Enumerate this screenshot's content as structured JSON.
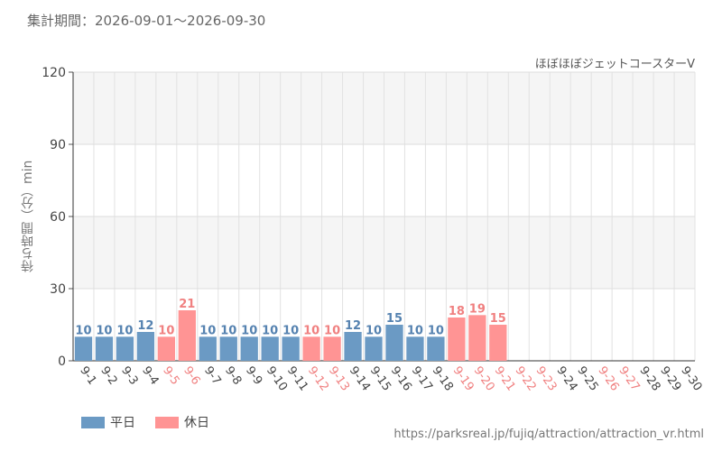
{
  "period": "集計期間：2026-09-01～2026-09-30",
  "source": "https://parksreal.jp/fujiq/attraction/attraction_vr.html",
  "chart_data": {
    "type": "bar",
    "subtitle": "ほぼほぼジェットコースターV",
    "ylabel": "待ち時間（分）min",
    "ylim": [
      0,
      120
    ],
    "yticks": [
      0,
      30,
      60,
      90,
      120
    ],
    "categories": [
      "9-1",
      "9-2",
      "9-3",
      "9-4",
      "9-5",
      "9-6",
      "9-7",
      "9-8",
      "9-9",
      "9-10",
      "9-11",
      "9-12",
      "9-13",
      "9-14",
      "9-15",
      "9-16",
      "9-17",
      "9-18",
      "9-19",
      "9-20",
      "9-21",
      "9-22",
      "9-23",
      "9-24",
      "9-25",
      "9-26",
      "9-27",
      "9-28",
      "9-29",
      "9-30"
    ],
    "values": [
      10,
      10,
      10,
      12,
      10,
      21,
      10,
      10,
      10,
      10,
      10,
      10,
      10,
      12,
      10,
      15,
      10,
      10,
      18,
      19,
      15,
      null,
      null,
      null,
      null,
      null,
      null,
      null,
      null,
      null
    ],
    "holiday": [
      false,
      false,
      false,
      false,
      true,
      true,
      false,
      false,
      false,
      false,
      false,
      true,
      true,
      false,
      false,
      false,
      false,
      false,
      true,
      true,
      true,
      true,
      true,
      false,
      false,
      true,
      true,
      false,
      false,
      false
    ],
    "legend": [
      {
        "name": "平日",
        "color": "#6b9ac4"
      },
      {
        "name": "休日",
        "color": "#ff9494"
      }
    ],
    "colors": {
      "weekday": "#6b9ac4",
      "holiday": "#ff9494",
      "weekday_label": "#5582b0",
      "holiday_label": "#f08080"
    }
  }
}
